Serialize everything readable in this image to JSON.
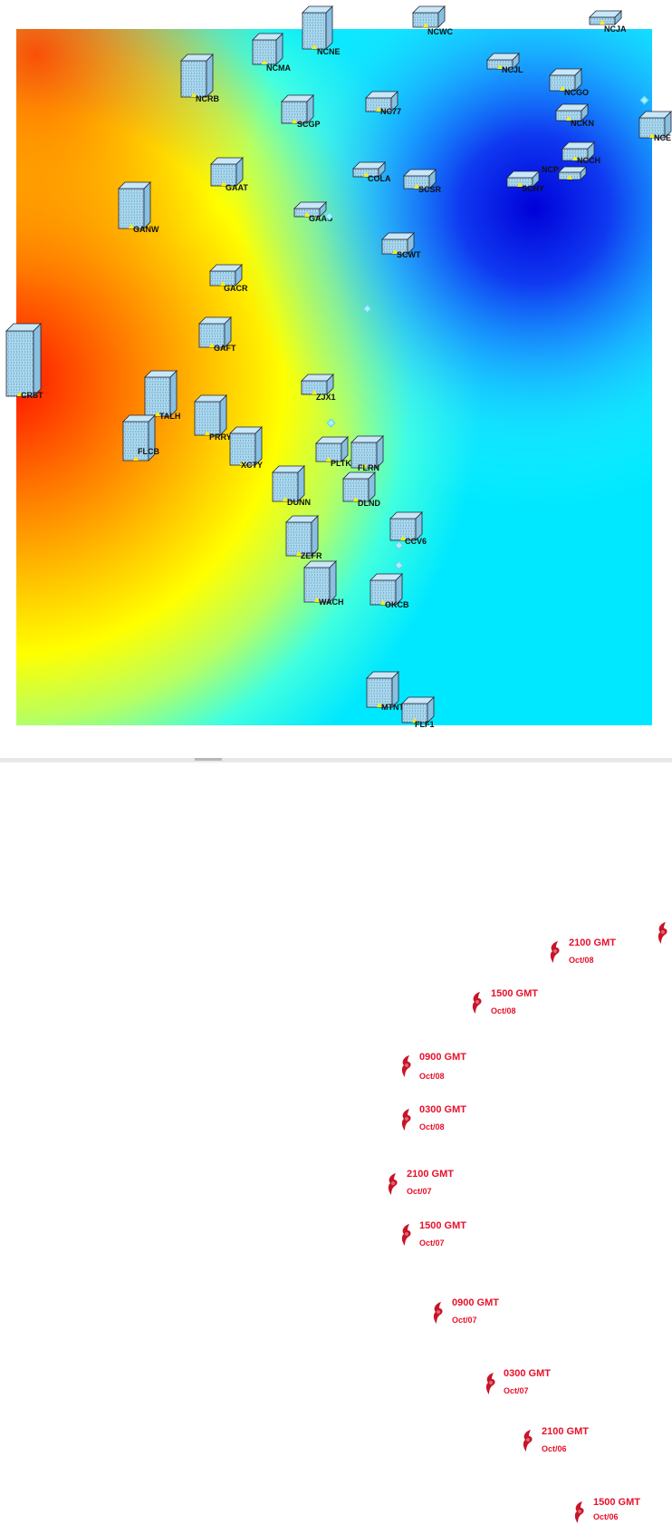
{
  "map": {
    "colors": {
      "hot": "#ff2a00",
      "warm": "#ff9900",
      "mid": "#ffff00",
      "cool": "#00ffee",
      "cold": "#0000dd",
      "hurricane": "#c81428",
      "label_red": "#e8102a"
    },
    "stations": [
      {
        "id": "NCNE",
        "label": "NCNE"
      },
      {
        "id": "NCWC",
        "label": "NCWC"
      },
      {
        "id": "NCJA",
        "label": "NCJA"
      },
      {
        "id": "NCMA",
        "label": "NCMA"
      },
      {
        "id": "NCJL",
        "label": "NCJL"
      },
      {
        "id": "NCRB",
        "label": "NCRB"
      },
      {
        "id": "NCGO",
        "label": "NCGO"
      },
      {
        "id": "NC77",
        "label": "NC77"
      },
      {
        "id": "SCGP",
        "label": "SCGP"
      },
      {
        "id": "NCKN",
        "label": "NCKN"
      },
      {
        "id": "NCE",
        "label": "NCE"
      },
      {
        "id": "NCCH",
        "label": "NCCH"
      },
      {
        "id": "NCP",
        "label": "NCP"
      },
      {
        "id": "GAAT",
        "label": "GAAT"
      },
      {
        "id": "COLA",
        "label": "COLA"
      },
      {
        "id": "SCSR",
        "label": "SCSR"
      },
      {
        "id": "SCHY",
        "label": "SCHY"
      },
      {
        "id": "GANW",
        "label": "GANW"
      },
      {
        "id": "GAAU",
        "label": "GAAU"
      },
      {
        "id": "SCWT",
        "label": "SCWT"
      },
      {
        "id": "GACR",
        "label": "GACR"
      },
      {
        "id": "GAFT",
        "label": "GAFT"
      },
      {
        "id": "CRST",
        "label": "CRST"
      },
      {
        "id": "ZJX1",
        "label": "ZJX1"
      },
      {
        "id": "TALH",
        "label": "TALH"
      },
      {
        "id": "PRRY",
        "label": "PRRY"
      },
      {
        "id": "FLCB",
        "label": "FLCB"
      },
      {
        "id": "XCTY",
        "label": "XCTY"
      },
      {
        "id": "PLTK",
        "label": "PLTK"
      },
      {
        "id": "FLRN",
        "label": "FLRN"
      },
      {
        "id": "DUNN",
        "label": "DUNN"
      },
      {
        "id": "DLND",
        "label": "DLND"
      },
      {
        "id": "CCV6",
        "label": "CCV6"
      },
      {
        "id": "ZEFR",
        "label": "ZEFR"
      },
      {
        "id": "WACH",
        "label": "WACH"
      },
      {
        "id": "OKCB",
        "label": "OKCB"
      },
      {
        "id": "MTNT",
        "label": "MTNT"
      },
      {
        "id": "FLF1",
        "label": "FLF1"
      }
    ],
    "hurricane_track": [
      {
        "id": "p1",
        "time": "2100 GMT",
        "date": "Oct/08"
      },
      {
        "id": "p2",
        "time": "1500 GMT",
        "date": "Oct/08"
      },
      {
        "id": "p3",
        "time": "0900 GMT",
        "date": "Oct/08"
      },
      {
        "id": "p4",
        "time": "0300 GMT",
        "date": "Oct/08"
      },
      {
        "id": "p5",
        "time": "2100 GMT",
        "date": "Oct/07"
      },
      {
        "id": "p6",
        "time": "1500 GMT",
        "date": "Oct/07"
      },
      {
        "id": "p7",
        "time": "0900 GMT",
        "date": "Oct/07"
      },
      {
        "id": "p8",
        "time": "0300 GMT",
        "date": "Oct/07"
      },
      {
        "id": "p9",
        "time": "2100 GMT",
        "date": "Oct/06"
      },
      {
        "id": "p10",
        "time": "1500 GMT",
        "date": "Oct/06"
      },
      {
        "id": "p11",
        "time": "",
        "date": ""
      }
    ]
  }
}
